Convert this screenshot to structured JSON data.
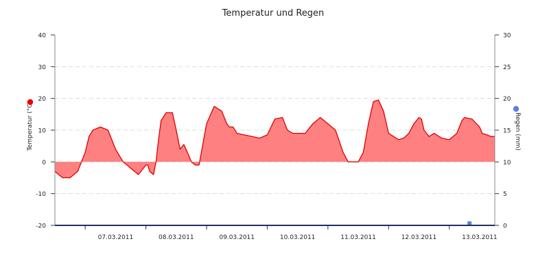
{
  "chart_data": {
    "type": "area",
    "title": "Temperatur und Regen",
    "grid": true,
    "colors": {
      "temperature_fill": "#ff8080",
      "temperature_line": "#dd0000",
      "temperature_marker": "#ee0000",
      "rain": "#5b7fe8",
      "axis": "#1f2f66"
    },
    "x_axis": {
      "start": "2011-03-06T12:00",
      "end": "2011-03-13T18:00",
      "tick_labels": [
        "07.03.2011",
        "08.03.2011",
        "09.03.2011",
        "10.03.2011",
        "11.03.2011",
        "12.03.2011",
        "13.03.2011"
      ]
    },
    "y_axis_left": {
      "label": "Temperatur (°C)",
      "ylim": [
        -20,
        40
      ],
      "ticks": [
        "40",
        "30",
        "20",
        "10",
        "0",
        "-10",
        "-20"
      ]
    },
    "y_axis_right": {
      "label": "Regen (mm)",
      "ylim": [
        0,
        30
      ],
      "ticks": [
        "30",
        "25",
        "20",
        "15",
        "10",
        "5",
        "0"
      ]
    },
    "series": [
      {
        "axis": "left",
        "x": [
          "2011-03-06T12:00",
          "2011-03-06T15:00",
          "2011-03-06T18:00",
          "2011-03-06T21:00",
          "2011-03-07T00:00",
          "2011-03-07T01:30",
          "2011-03-07T03:00",
          "2011-03-07T06:00",
          "2011-03-07T09:00",
          "2011-03-07T12:00",
          "2011-03-07T13:30",
          "2011-03-07T15:00",
          "2011-03-07T18:00",
          "2011-03-07T21:00",
          "2011-03-08T00:00",
          "2011-03-08T00:45",
          "2011-03-08T01:30",
          "2011-03-08T03:00",
          "2011-03-08T04:00",
          "2011-03-08T05:00",
          "2011-03-08T06:00",
          "2011-03-08T08:00",
          "2011-03-08T10:30",
          "2011-03-08T12:00",
          "2011-03-08T13:30",
          "2011-03-08T15:00",
          "2011-03-08T17:00",
          "2011-03-08T18:00",
          "2011-03-08T19:30",
          "2011-03-08T21:00",
          "2011-03-09T00:00",
          "2011-03-09T03:00",
          "2011-03-09T06:00",
          "2011-03-09T08:00",
          "2011-03-09T09:00",
          "2011-03-09T10:30",
          "2011-03-09T12:00",
          "2011-03-09T15:00",
          "2011-03-09T18:00",
          "2011-03-09T21:00",
          "2011-03-10T00:00",
          "2011-03-10T03:00",
          "2011-03-10T06:00",
          "2011-03-10T07:00",
          "2011-03-10T08:00",
          "2011-03-10T09:00",
          "2011-03-10T10:00",
          "2011-03-10T12:00",
          "2011-03-10T13:00",
          "2011-03-10T15:00",
          "2011-03-10T18:00",
          "2011-03-10T21:00",
          "2011-03-11T00:00",
          "2011-03-11T03:00",
          "2011-03-11T06:00",
          "2011-03-11T08:00",
          "2011-03-11T10:30",
          "2011-03-11T12:00",
          "2011-03-11T14:00",
          "2011-03-11T16:00",
          "2011-03-11T18:00",
          "2011-03-11T20:00",
          "2011-03-11T22:00",
          "2011-03-12T00:00",
          "2011-03-12T02:00",
          "2011-03-12T04:00",
          "2011-03-12T06:00",
          "2011-03-12T08:00",
          "2011-03-12T10:00",
          "2011-03-12T12:00",
          "2011-03-12T13:00",
          "2011-03-12T14:00",
          "2011-03-12T16:00",
          "2011-03-12T18:00",
          "2011-03-12T21:00",
          "2011-03-13T00:00",
          "2011-03-13T03:00",
          "2011-03-13T05:00",
          "2011-03-13T06:00",
          "2011-03-13T09:00",
          "2011-03-13T12:00",
          "2011-03-13T13:00",
          "2011-03-13T15:00",
          "2011-03-13T16:30",
          "2011-03-13T18:00"
        ],
        "y": [
          -3,
          -5,
          -5,
          -3,
          3,
          8,
          10,
          11,
          10,
          4,
          2,
          0,
          -2,
          -4,
          -1,
          -1,
          -3,
          -4,
          0,
          7,
          13,
          15.5,
          15.5,
          10,
          4,
          5.5,
          2,
          0,
          -1,
          -1,
          12,
          17.5,
          16,
          12,
          11,
          11,
          9,
          8.5,
          8,
          7.5,
          8.5,
          13.5,
          14,
          12,
          10,
          9.5,
          9,
          9,
          9,
          9,
          12,
          14,
          12,
          10,
          3,
          0,
          0,
          0,
          3,
          12,
          19,
          19.5,
          16,
          9,
          8,
          7,
          7.5,
          9,
          12,
          14,
          13.5,
          10,
          8,
          9,
          7.5,
          7,
          9,
          13,
          14,
          13.5,
          11,
          9,
          8.5,
          8,
          8
        ]
      },
      {
        "axis": "right",
        "type": "scatter",
        "x": [
          "2011-03-13T08:00"
        ],
        "y": [
          0.2
        ]
      }
    ]
  }
}
